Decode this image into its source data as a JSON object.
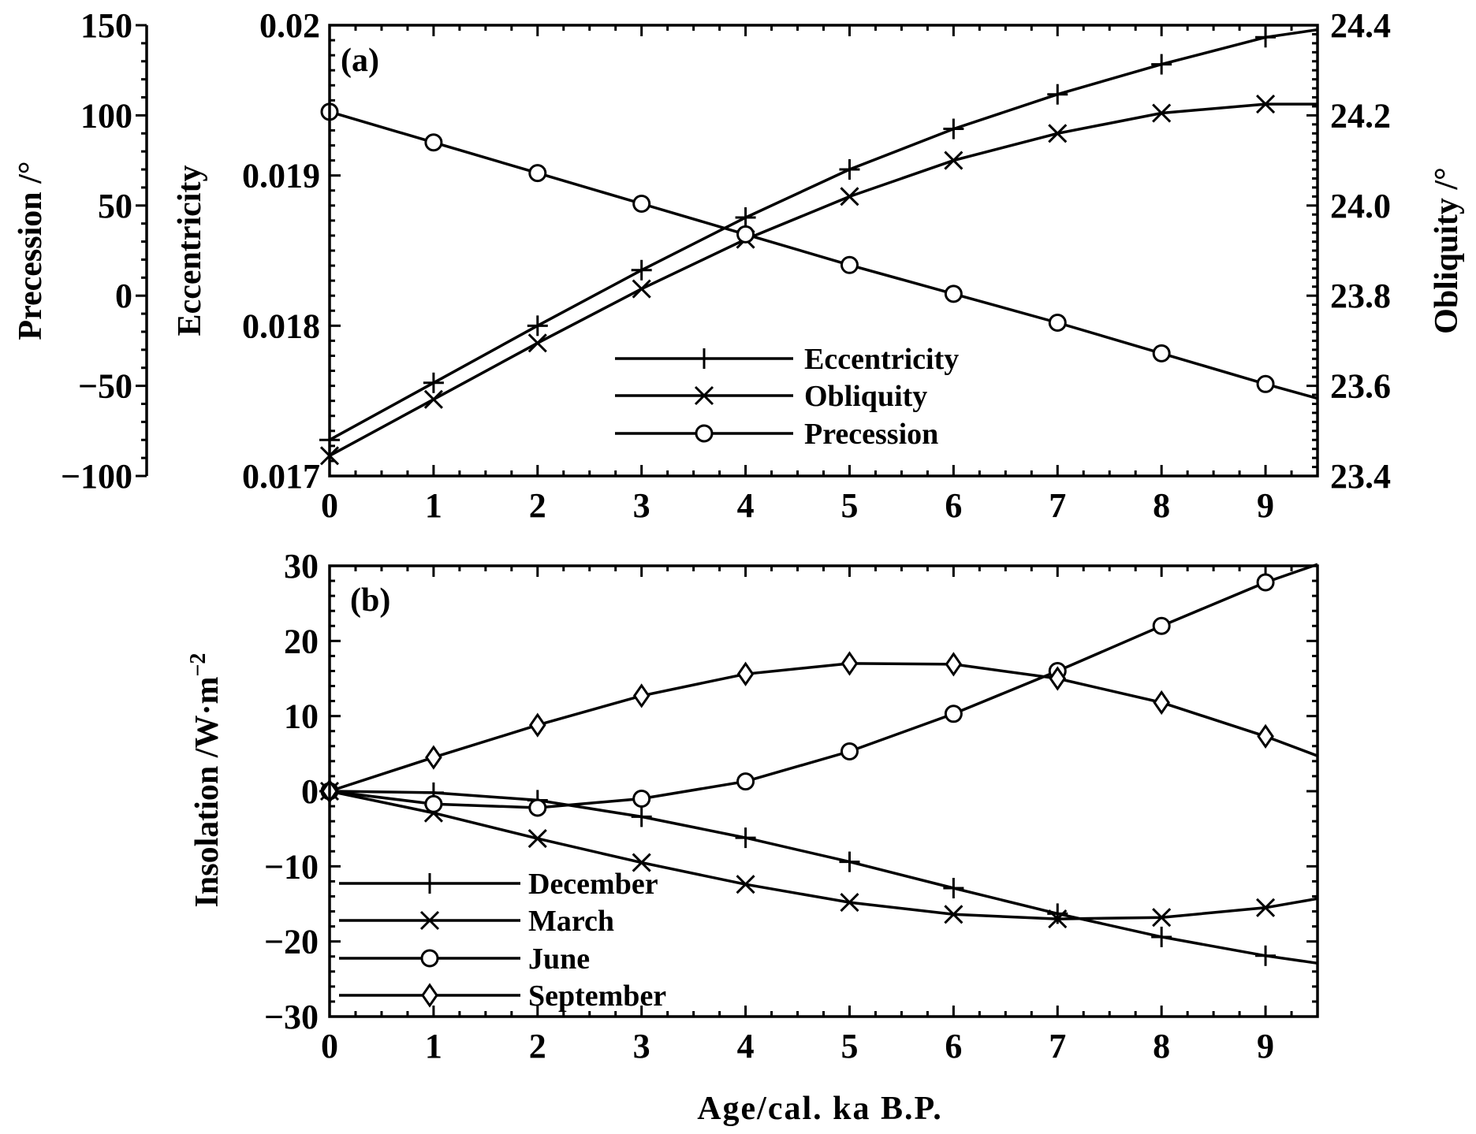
{
  "chart_data": [
    {
      "panel": "(a)",
      "type": "line",
      "x": [
        0,
        1,
        2,
        3,
        4,
        5,
        6,
        7,
        8,
        9
      ],
      "xlim": [
        0,
        9.5
      ],
      "xticks": [
        "0",
        "1",
        "2",
        "3",
        "4",
        "5",
        "6",
        "7",
        "8",
        "9"
      ],
      "axes": {
        "left_outer": {
          "label": "Precession /°",
          "lim": [
            -100,
            150
          ],
          "ticks": [
            "−100",
            "−50",
            "0",
            "50",
            "100",
            "150"
          ]
        },
        "left_inner": {
          "label": "Eccentricity",
          "lim": [
            0.017,
            0.02
          ],
          "ticks": [
            "0.017",
            "0.018",
            "0.019",
            "0.02"
          ]
        },
        "right": {
          "label": "Obliquity /°",
          "lim": [
            23.4,
            24.4
          ],
          "ticks": [
            "23.4",
            "23.6",
            "23.8",
            "24.0",
            "24.2",
            "24.4"
          ]
        }
      },
      "series": [
        {
          "name": "Eccentricity",
          "axis": "left_inner",
          "marker": "plus",
          "values": [
            0.01724,
            0.01762,
            0.018,
            0.01837,
            0.01872,
            0.01904,
            0.01931,
            0.01954,
            0.01974,
            0.01992
          ],
          "end_value": 0.01997
        },
        {
          "name": "Obliquity",
          "axis": "right",
          "marker": "x",
          "values": [
            23.445,
            23.57,
            23.695,
            23.815,
            23.925,
            24.02,
            24.1,
            24.16,
            24.205,
            24.225
          ],
          "end_value": 24.225
        },
        {
          "name": "Precession",
          "axis": "left_outer",
          "marker": "circle",
          "values": [
            102,
            85,
            68,
            51,
            34,
            17,
            1,
            -15,
            -32,
            -49
          ],
          "end_value": -57
        }
      ],
      "legend": [
        "Eccentricity",
        "Obliquity",
        "Precession"
      ]
    },
    {
      "panel": "(b)",
      "type": "line",
      "x": [
        0,
        1,
        2,
        3,
        4,
        5,
        6,
        7,
        8,
        9
      ],
      "xlim": [
        0,
        9.5
      ],
      "xticks": [
        "0",
        "1",
        "2",
        "3",
        "4",
        "5",
        "6",
        "7",
        "8",
        "9"
      ],
      "xlabel": "Age/cal. ka B.P.",
      "ylabel": "Insolation /W·m",
      "ylabel_superscript": "−2",
      "ylim": [
        -30,
        30
      ],
      "yticks": [
        "−30",
        "−20",
        "−10",
        "0",
        "10",
        "20",
        "30"
      ],
      "series": [
        {
          "name": "December",
          "marker": "plus",
          "values": [
            0,
            -0.2,
            -1.2,
            -3.4,
            -6.2,
            -9.4,
            -12.9,
            -16.3,
            -19.4,
            -21.9
          ],
          "end_value": -22.9
        },
        {
          "name": "March",
          "marker": "x",
          "values": [
            0,
            -2.9,
            -6.3,
            -9.5,
            -12.4,
            -14.8,
            -16.4,
            -17.0,
            -16.8,
            -15.5
          ],
          "end_value": -14.3
        },
        {
          "name": "June",
          "marker": "circle",
          "values": [
            0,
            -1.7,
            -2.2,
            -1.0,
            1.3,
            5.3,
            10.3,
            16.0,
            22.0,
            27.8
          ],
          "end_value": 30.2
        },
        {
          "name": "September",
          "marker": "diamond",
          "values": [
            0,
            4.5,
            8.8,
            12.7,
            15.6,
            17.0,
            16.9,
            15.0,
            11.8,
            7.3
          ],
          "end_value": 4.7
        }
      ],
      "legend": [
        "December",
        "March",
        "June",
        "September"
      ]
    }
  ]
}
